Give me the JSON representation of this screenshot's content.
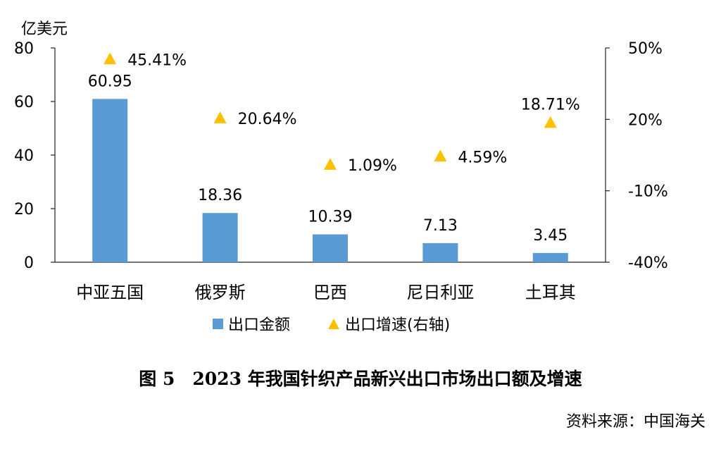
{
  "chart_data": {
    "type": "bar",
    "title": "图 5　2023 年我国针织产品新兴出口市场出口额及增速",
    "ylabel": "亿美元",
    "categories": [
      "中亚五国",
      "俄罗斯",
      "巴西",
      "尼日利亚",
      "土耳其"
    ],
    "series": [
      {
        "name": "出口金额",
        "type": "bar",
        "axis": "left",
        "color": "#5B9BD5",
        "values": [
          60.95,
          18.36,
          10.39,
          7.13,
          3.45
        ],
        "labels": [
          "60.95",
          "18.36",
          "10.39",
          "7.13",
          "3.45"
        ]
      },
      {
        "name": "出口增速(右轴)",
        "type": "scatter",
        "marker": "triangle",
        "axis": "right",
        "color": "#FFC000",
        "values": [
          45.41,
          20.64,
          1.09,
          4.59,
          18.71
        ],
        "labels": [
          "45.41%",
          "20.64%",
          "1.09%",
          "4.59%",
          "18.71%"
        ]
      }
    ],
    "y_left": {
      "min": 0,
      "max": 80,
      "ticks": [
        0,
        20,
        40,
        60,
        80
      ],
      "tick_labels": [
        "0",
        "20",
        "40",
        "60",
        "80"
      ]
    },
    "y_right": {
      "min": -40,
      "max": 50,
      "ticks": [
        -40,
        -10,
        20,
        50
      ],
      "tick_labels": [
        "-40%",
        "-10%",
        "20%",
        "50%"
      ]
    },
    "grid": false,
    "legend": "bottom-center"
  },
  "source": "资料来源：中国海关"
}
